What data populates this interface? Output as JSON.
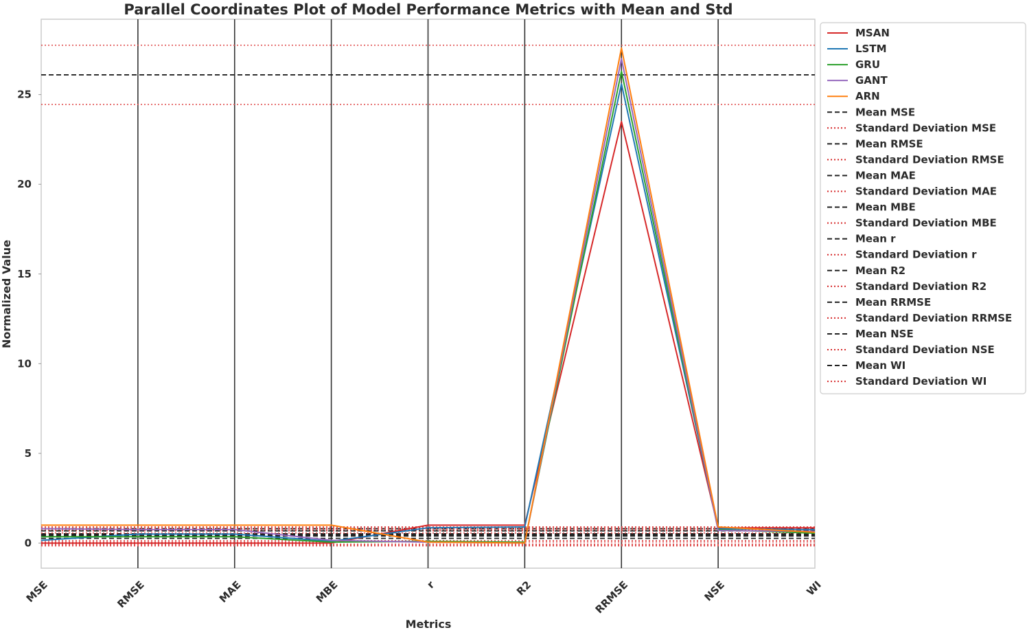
{
  "chart_data": {
    "type": "line",
    "title": "Parallel Coordinates Plot of Model Performance Metrics with Mean and Std",
    "xlabel": "Metrics",
    "ylabel": "Normalized Value",
    "categories": [
      "MSE",
      "RMSE",
      "MAE",
      "MBE",
      "r",
      "R2",
      "RRMSE",
      "NSE",
      "WI"
    ],
    "ylim": [
      -1.4,
      29.2
    ],
    "yticks": [
      0,
      5,
      10,
      15,
      20,
      25
    ],
    "grid": "vertical",
    "legend_position": "outside-top-right",
    "series": [
      {
        "name": "MSAN",
        "color": "#d62728",
        "values": [
          0.0,
          0.0,
          0.0,
          0.0,
          1.0,
          1.0,
          23.5,
          0.85,
          0.85
        ]
      },
      {
        "name": "LSTM",
        "color": "#1f77b4",
        "values": [
          0.15,
          0.5,
          0.5,
          0.1,
          0.85,
          0.9,
          25.6,
          0.8,
          0.75
        ]
      },
      {
        "name": "GRU",
        "color": "#2ca02c",
        "values": [
          0.35,
          0.35,
          0.35,
          0.05,
          0.1,
          0.05,
          26.3,
          0.75,
          0.55
        ]
      },
      {
        "name": "GANT",
        "color": "#9467bd",
        "values": [
          0.8,
          0.75,
          0.75,
          0.15,
          0.05,
          0.0,
          27.0,
          0.7,
          0.65
        ]
      },
      {
        "name": "ARN",
        "color": "#ff7f0e",
        "values": [
          1.0,
          1.0,
          1.0,
          1.0,
          0.05,
          0.0,
          27.6,
          0.9,
          0.6
        ]
      }
    ],
    "mean_lines": [
      {
        "name": "Mean MSE",
        "value": 0.46,
        "std": 0.4
      },
      {
        "name": "Mean RMSE",
        "value": 0.52,
        "std": 0.38
      },
      {
        "name": "Mean MAE",
        "value": 0.52,
        "std": 0.38
      },
      {
        "name": "Mean MBE",
        "value": 0.26,
        "std": 0.42
      },
      {
        "name": "Mean r",
        "value": 0.41,
        "std": 0.47
      },
      {
        "name": "Mean R2",
        "value": 0.39,
        "std": 0.5
      },
      {
        "name": "Mean RRMSE",
        "value": 26.1,
        "std": 1.65
      },
      {
        "name": "Mean NSE",
        "value": 0.8,
        "std": 0.07
      },
      {
        "name": "Mean WI",
        "value": 0.68,
        "std": 0.12
      }
    ],
    "legend": [
      {
        "label": "MSAN",
        "style": "solid",
        "color": "#d62728"
      },
      {
        "label": "LSTM",
        "style": "solid",
        "color": "#1f77b4"
      },
      {
        "label": "GRU",
        "style": "solid",
        "color": "#2ca02c"
      },
      {
        "label": "GANT",
        "style": "solid",
        "color": "#9467bd"
      },
      {
        "label": "ARN",
        "style": "solid",
        "color": "#ff7f0e"
      },
      {
        "label": "Mean MSE",
        "style": "dashed",
        "color": "#222222"
      },
      {
        "label": "Standard Deviation MSE",
        "style": "dotted",
        "color": "#d62728"
      },
      {
        "label": "Mean RMSE",
        "style": "dashed",
        "color": "#222222"
      },
      {
        "label": "Standard Deviation RMSE",
        "style": "dotted",
        "color": "#d62728"
      },
      {
        "label": "Mean MAE",
        "style": "dashed",
        "color": "#222222"
      },
      {
        "label": "Standard Deviation MAE",
        "style": "dotted",
        "color": "#d62728"
      },
      {
        "label": "Mean MBE",
        "style": "dashed",
        "color": "#222222"
      },
      {
        "label": "Standard Deviation MBE",
        "style": "dotted",
        "color": "#d62728"
      },
      {
        "label": "Mean r",
        "style": "dashed",
        "color": "#222222"
      },
      {
        "label": "Standard Deviation r",
        "style": "dotted",
        "color": "#d62728"
      },
      {
        "label": "Mean R2",
        "style": "dashed",
        "color": "#222222"
      },
      {
        "label": "Standard Deviation R2",
        "style": "dotted",
        "color": "#d62728"
      },
      {
        "label": "Mean RRMSE",
        "style": "dashed",
        "color": "#222222"
      },
      {
        "label": "Standard Deviation RRMSE",
        "style": "dotted",
        "color": "#d62728"
      },
      {
        "label": "Mean NSE",
        "style": "dashed",
        "color": "#222222"
      },
      {
        "label": "Standard Deviation NSE",
        "style": "dotted",
        "color": "#d62728"
      },
      {
        "label": "Mean WI",
        "style": "dashed",
        "color": "#222222"
      },
      {
        "label": "Standard Deviation WI",
        "style": "dotted",
        "color": "#d62728"
      }
    ]
  }
}
